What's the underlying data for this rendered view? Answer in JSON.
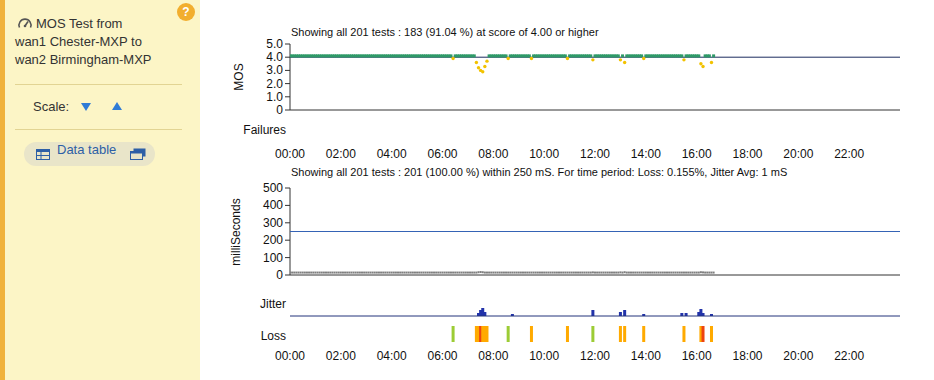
{
  "sidebar": {
    "title_lines": [
      "MOS Test from",
      "wan1 Chester-MXP to",
      "wan2 Birmingham-MXP"
    ],
    "help": "?",
    "scale_label": "Scale:",
    "data_table": "Data table"
  },
  "chart_data": [
    {
      "type": "scatter",
      "title": "Showing all 201 tests : 183 (91.04 %) at score of 4.00 or higher",
      "y_label": "MOS",
      "failures_label": "Failures",
      "xlim": [
        0,
        1440
      ],
      "xticks": [
        {
          "value": 0,
          "label": "00:00"
        },
        {
          "value": 120,
          "label": "02:00"
        },
        {
          "value": 240,
          "label": "04:00"
        },
        {
          "value": 360,
          "label": "06:00"
        },
        {
          "value": 480,
          "label": "08:00"
        },
        {
          "value": 600,
          "label": "10:00"
        },
        {
          "value": 720,
          "label": "12:00"
        },
        {
          "value": 840,
          "label": "14:00"
        },
        {
          "value": 960,
          "label": "16:00"
        },
        {
          "value": 1080,
          "label": "18:00"
        },
        {
          "value": 1200,
          "label": "20:00"
        },
        {
          "value": 1320,
          "label": "22:00"
        }
      ],
      "ylim": [
        0,
        5
      ],
      "yticks": [
        {
          "value": 5,
          "label": "5.0"
        },
        {
          "value": 4,
          "label": "4.0"
        },
        {
          "value": 3,
          "label": "3.0"
        },
        {
          "value": 2,
          "label": "2.0"
        },
        {
          "value": 1,
          "label": "1.0"
        },
        0
      ],
      "threshold": 4,
      "x": [
        0,
        5,
        10,
        15,
        20,
        25,
        30,
        35,
        40,
        45,
        50,
        55,
        60,
        65,
        70,
        75,
        80,
        85,
        90,
        95,
        100,
        105,
        110,
        115,
        120,
        125,
        130,
        135,
        140,
        145,
        150,
        155,
        160,
        165,
        170,
        175,
        180,
        185,
        190,
        195,
        200,
        205,
        210,
        215,
        220,
        225,
        230,
        235,
        240,
        245,
        250,
        255,
        260,
        265,
        270,
        275,
        280,
        285,
        290,
        295,
        300,
        305,
        310,
        315,
        320,
        325,
        330,
        335,
        340,
        345,
        350,
        355,
        360,
        365,
        370,
        375,
        380,
        385,
        390,
        395,
        400,
        405,
        410,
        415,
        420,
        425,
        430,
        435,
        440,
        445,
        450,
        455,
        460,
        465,
        470,
        475,
        480,
        485,
        490,
        495,
        500,
        505,
        510,
        515,
        520,
        525,
        530,
        535,
        540,
        545,
        550,
        555,
        560,
        565,
        570,
        575,
        580,
        585,
        590,
        595,
        600,
        605,
        610,
        615,
        620,
        625,
        630,
        635,
        640,
        645,
        650,
        655,
        660,
        665,
        670,
        675,
        680,
        685,
        690,
        695,
        700,
        705,
        710,
        715,
        720,
        725,
        730,
        735,
        740,
        745,
        750,
        755,
        760,
        765,
        770,
        775,
        780,
        785,
        790,
        795,
        800,
        805,
        810,
        815,
        820,
        825,
        830,
        835,
        840,
        845,
        850,
        855,
        860,
        865,
        870,
        875,
        880,
        885,
        890,
        895,
        900,
        905,
        910,
        915,
        920,
        925,
        930,
        935,
        940,
        945,
        950,
        955,
        960,
        965,
        970,
        975,
        980,
        985,
        990,
        995,
        1000
      ],
      "series": [
        {
          "type": "scatter",
          "marker": "square",
          "color": "#2f9a68",
          "values": [
            4.1,
            4.1,
            4.1,
            4.1,
            4.1,
            4.1,
            4.1,
            4.1,
            4.1,
            4.1,
            4.1,
            4.1,
            4.1,
            4.1,
            4.1,
            4.1,
            4.1,
            4.1,
            4.1,
            4.1,
            4.1,
            4.1,
            4.1,
            4.1,
            4.1,
            4.1,
            4.1,
            4.1,
            4.1,
            4.1,
            4.1,
            4.1,
            4.1,
            4.1,
            4.1,
            4.1,
            4.1,
            4.1,
            4.1,
            4.1,
            4.1,
            4.1,
            4.1,
            4.1,
            4.1,
            4.1,
            4.1,
            4.1,
            4.1,
            4.1,
            4.1,
            4.1,
            4.1,
            4.1,
            4.1,
            4.1,
            4.1,
            4.1,
            4.1,
            4.1,
            4.1,
            4.1,
            4.1,
            4.1,
            4.1,
            4.1,
            4.1,
            4.1,
            4.1,
            4.1,
            4.1,
            4.1,
            4.1,
            4.1,
            4.1,
            4.1,
            4.1,
            null,
            4.1,
            4.1,
            4.1,
            4.1,
            4.1,
            4.1,
            4.1,
            4.1,
            4.1,
            4.1,
            null,
            null,
            null,
            null,
            null,
            null,
            4.1,
            4.1,
            4.1,
            4.1,
            4.1,
            4.1,
            4.1,
            4.1,
            4.1,
            null,
            4.1,
            4.1,
            4.1,
            4.1,
            4.1,
            4.1,
            4.1,
            4.1,
            4.1,
            4.1,
            null,
            4.1,
            4.1,
            4.1,
            4.1,
            4.1,
            4.1,
            4.1,
            4.1,
            4.1,
            4.1,
            4.1,
            4.1,
            4.1,
            4.1,
            4.1,
            4.1,
            null,
            4.1,
            4.1,
            4.1,
            4.1,
            4.1,
            4.1,
            4.1,
            4.1,
            4.1,
            4.1,
            4.1,
            null,
            4.1,
            4.1,
            4.1,
            4.1,
            4.1,
            4.1,
            4.1,
            4.1,
            4.1,
            4.1,
            4.1,
            4.1,
            null,
            4.1,
            null,
            4.1,
            4.1,
            4.1,
            4.1,
            4.1,
            4.1,
            4.1,
            4.1,
            null,
            4.1,
            4.1,
            4.1,
            4.1,
            4.1,
            4.1,
            4.1,
            4.1,
            4.1,
            4.1,
            4.1,
            4.1,
            4.1,
            4.1,
            4.1,
            4.1,
            4.1,
            4.1,
            null,
            4.1,
            4.1,
            4.1,
            4.1,
            4.1,
            4.1,
            4.1,
            null,
            null,
            4.1,
            4.1,
            4.1,
            null,
            4.1
          ]
        },
        {
          "type": "scatter",
          "marker": "dot",
          "color": "#f2c200",
          "x": [
            385,
            440,
            445,
            450,
            455,
            460,
            465,
            515,
            570,
            655,
            715,
            780,
            790,
            835,
            930,
            970,
            975,
            995
          ],
          "values": [
            3.9,
            3.6,
            3.2,
            3.0,
            2.9,
            3.3,
            3.7,
            3.9,
            3.9,
            3.9,
            3.8,
            3.8,
            3.6,
            3.9,
            3.8,
            3.5,
            3.3,
            3.6
          ]
        }
      ]
    },
    {
      "type": "scatter",
      "title": "Showing all 201 tests : 201 (100.00 %) within 250 mS. For time period: Loss: 0.155%, Jitter Avg: 1 mS",
      "y_label": "milliSeconds",
      "xlim": [
        0,
        1440
      ],
      "xticks": [
        {
          "value": 0,
          "label": "00:00"
        },
        {
          "value": 120,
          "label": "02:00"
        },
        {
          "value": 240,
          "label": "04:00"
        },
        {
          "value": 360,
          "label": "06:00"
        },
        {
          "value": 480,
          "label": "08:00"
        },
        {
          "value": 600,
          "label": "10:00"
        },
        {
          "value": 720,
          "label": "12:00"
        },
        {
          "value": 840,
          "label": "14:00"
        },
        {
          "value": 960,
          "label": "16:00"
        },
        {
          "value": 1080,
          "label": "18:00"
        },
        {
          "value": 1200,
          "label": "20:00"
        },
        {
          "value": 1320,
          "label": "22:00"
        }
      ],
      "ylim": [
        0,
        500
      ],
      "yticks": [
        500,
        400,
        300,
        200,
        100,
        0
      ],
      "threshold": 250,
      "x": [
        0,
        5,
        10,
        15,
        20,
        25,
        30,
        35,
        40,
        45,
        50,
        55,
        60,
        65,
        70,
        75,
        80,
        85,
        90,
        95,
        100,
        105,
        110,
        115,
        120,
        125,
        130,
        135,
        140,
        145,
        150,
        155,
        160,
        165,
        170,
        175,
        180,
        185,
        190,
        195,
        200,
        205,
        210,
        215,
        220,
        225,
        230,
        235,
        240,
        245,
        250,
        255,
        260,
        265,
        270,
        275,
        280,
        285,
        290,
        295,
        300,
        305,
        310,
        315,
        320,
        325,
        330,
        335,
        340,
        345,
        350,
        355,
        360,
        365,
        370,
        375,
        380,
        385,
        390,
        395,
        400,
        405,
        410,
        415,
        420,
        425,
        430,
        435,
        440,
        445,
        450,
        455,
        460,
        465,
        470,
        475,
        480,
        485,
        490,
        495,
        500,
        505,
        510,
        515,
        520,
        525,
        530,
        535,
        540,
        545,
        550,
        555,
        560,
        565,
        570,
        575,
        580,
        585,
        590,
        595,
        600,
        605,
        610,
        615,
        620,
        625,
        630,
        635,
        640,
        645,
        650,
        655,
        660,
        665,
        670,
        675,
        680,
        685,
        690,
        695,
        700,
        705,
        710,
        715,
        720,
        725,
        730,
        735,
        740,
        745,
        750,
        755,
        760,
        765,
        770,
        775,
        780,
        785,
        790,
        795,
        800,
        805,
        810,
        815,
        820,
        825,
        830,
        835,
        840,
        845,
        850,
        855,
        860,
        865,
        870,
        875,
        880,
        885,
        890,
        895,
        900,
        905,
        910,
        915,
        920,
        925,
        930,
        935,
        940,
        945,
        950,
        955,
        960,
        965,
        970,
        975,
        980,
        985,
        990,
        995,
        1000
      ],
      "series": [
        {
          "type": "scatter",
          "marker": "dash",
          "color": "#7f7f7f",
          "values": [
            14,
            14,
            14,
            14,
            14,
            14,
            14,
            14,
            14,
            14,
            14,
            14,
            14,
            14,
            14,
            14,
            14,
            14,
            14,
            14,
            14,
            14,
            14,
            14,
            14,
            14,
            14,
            14,
            14,
            14,
            14,
            14,
            14,
            14,
            14,
            14,
            14,
            14,
            14,
            14,
            14,
            14,
            14,
            14,
            14,
            14,
            14,
            14,
            14,
            14,
            14,
            14,
            14,
            14,
            14,
            14,
            14,
            14,
            14,
            14,
            14,
            14,
            14,
            14,
            14,
            14,
            14,
            14,
            14,
            14,
            14,
            14,
            14,
            14,
            14,
            14,
            14,
            14,
            14,
            14,
            14,
            14,
            14,
            14,
            14,
            14,
            14,
            14,
            14,
            16,
            17,
            16,
            14,
            14,
            14,
            14,
            14,
            14,
            14,
            14,
            14,
            14,
            14,
            14,
            14,
            14,
            14,
            14,
            14,
            14,
            14,
            14,
            14,
            14,
            14,
            14,
            14,
            14,
            14,
            14,
            14,
            14,
            14,
            14,
            14,
            14,
            14,
            14,
            14,
            14,
            14,
            14,
            14,
            14,
            14,
            14,
            14,
            14,
            14,
            14,
            14,
            14,
            14,
            15,
            14,
            14,
            14,
            14,
            14,
            14,
            14,
            14,
            14,
            14,
            14,
            14,
            15,
            14,
            16,
            14,
            14,
            14,
            14,
            14,
            14,
            14,
            14,
            14,
            14,
            14,
            14,
            14,
            14,
            14,
            14,
            14,
            14,
            14,
            14,
            14,
            14,
            14,
            14,
            14,
            14,
            14,
            14,
            14,
            14,
            14,
            14,
            14,
            14,
            14,
            16,
            15,
            14,
            14,
            14,
            14,
            14
          ]
        },
        {
          "type": "bar",
          "name": "Jitter",
          "color": "#2233aa",
          "ylim": [
            0,
            10
          ],
          "x": [
            445,
            450,
            455,
            460,
            525,
            715,
            780,
            790,
            835,
            925,
            935,
            965,
            970,
            975,
            995
          ],
          "values": [
            1.5,
            3,
            4,
            2,
            1,
            3,
            2,
            3,
            1,
            1.5,
            1.5,
            2,
            3.5,
            1.5,
            1
          ]
        },
        {
          "type": "strip",
          "name": "Loss",
          "x": [
            385,
            440,
            445,
            450,
            455,
            460,
            465,
            515,
            570,
            655,
            715,
            780,
            790,
            835,
            930,
            970,
            975,
            995
          ],
          "values": [
            1,
            1.5,
            1.5,
            4,
            1.5,
            1.5,
            1.5,
            1,
            1.5,
            1.5,
            1,
            1.5,
            1.5,
            1.5,
            1.5,
            1.5,
            4,
            1.5
          ],
          "colors": [
            "#9ccc35",
            "#ffaa00",
            "#ffaa00",
            "#ee4411",
            "#ffaa00",
            "#ffaa00",
            "#ffaa00",
            "#9ccc35",
            "#ffaa00",
            "#ffaa00",
            "#9ccc35",
            "#ffaa00",
            "#ffaa00",
            "#ffaa00",
            "#ffaa00",
            "#ffaa00",
            "#ee4411",
            "#ffaa00"
          ]
        }
      ]
    }
  ]
}
